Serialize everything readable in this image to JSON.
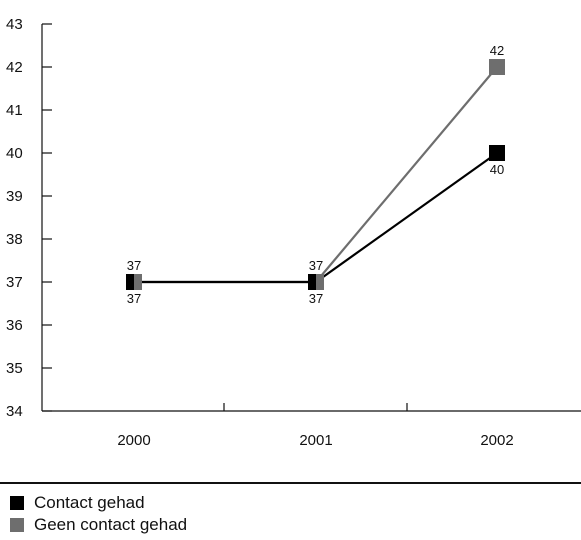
{
  "chart_data": {
    "type": "line",
    "x": [
      "2000",
      "2001",
      "2002"
    ],
    "ylim": [
      34,
      43
    ],
    "yticks": [
      34,
      35,
      36,
      37,
      38,
      39,
      40,
      41,
      42,
      43
    ],
    "grid": false,
    "legend_position": "bottom",
    "series": [
      {
        "name": "Contact gehad",
        "values": [
          37,
          37,
          40
        ],
        "color": "#000000",
        "label_position": "below"
      },
      {
        "name": "Geen contact gehad",
        "values": [
          37,
          37,
          42
        ],
        "color": "#6e6e6e",
        "label_position": "above"
      }
    ]
  }
}
